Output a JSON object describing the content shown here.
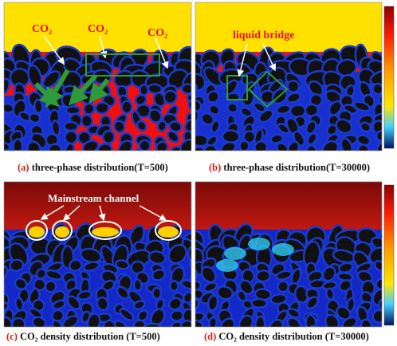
{
  "panels": [
    {
      "label": "(a)",
      "caption": "three-phase distribution(T=500)",
      "annotations": [
        "CO₂",
        "CO₂",
        "CO₂"
      ]
    },
    {
      "label": "(b)",
      "caption": "three-phase distribution(T=30000)",
      "annotations": [
        "liquid bridge"
      ]
    },
    {
      "label": "(c)",
      "caption": "CO₂  density distribution (T=500)",
      "annotations": [
        "Mainstream channel"
      ]
    },
    {
      "label": "(d)",
      "caption": "CO₂  density distribution (T=30000)",
      "annotations": []
    }
  ]
}
